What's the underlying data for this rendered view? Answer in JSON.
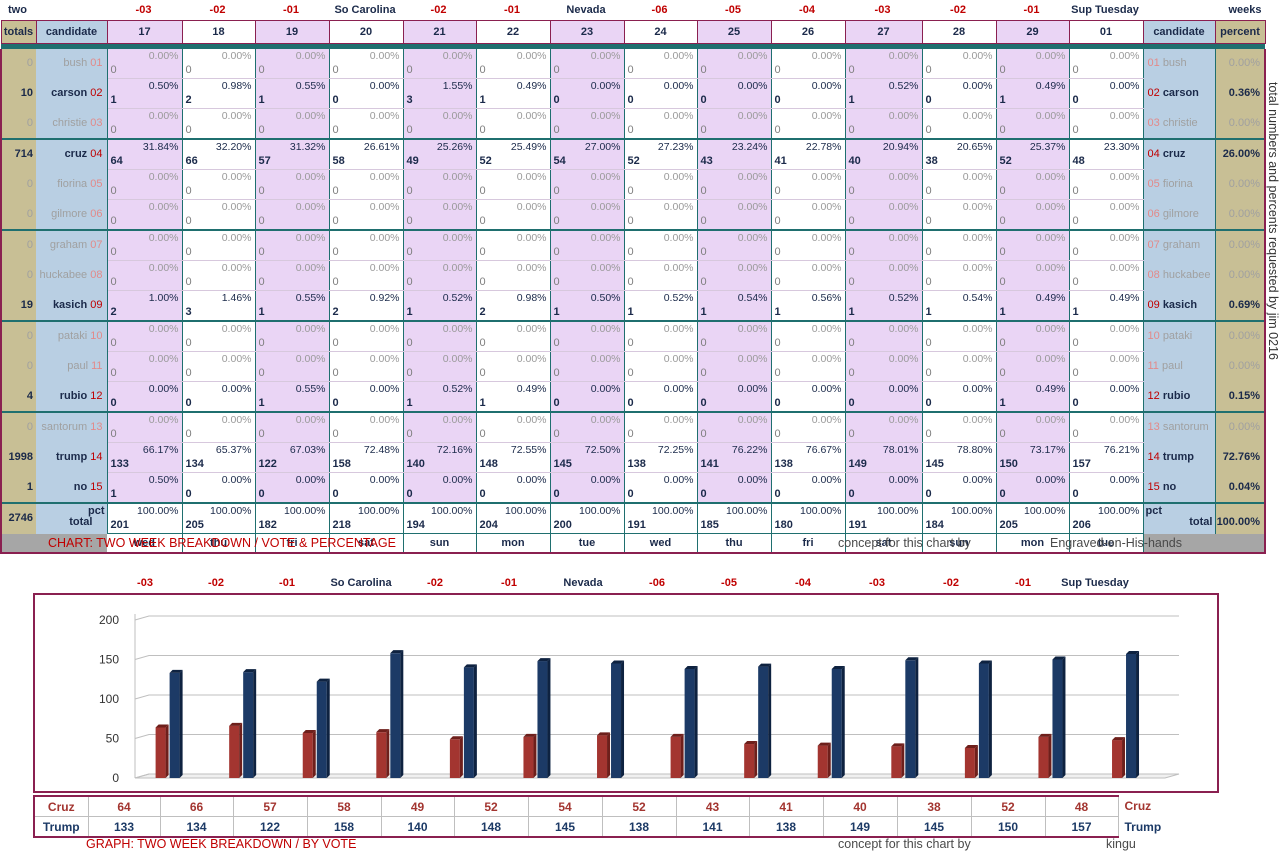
{
  "colors": {
    "red": "#c00000",
    "navy": "#1b2a4a",
    "lavender": "#ead5f5",
    "tan": "#c8bf95",
    "blue": "#b9cfe3",
    "teal": "#1f6f6f",
    "frame": "#8a2050",
    "cruz_bar": "#a33530",
    "trump_bar": "#1c3a66"
  },
  "top_headers": {
    "two": "two",
    "weeks": "weeks",
    "labels": [
      "-03",
      "-02",
      "-01",
      "So Carolina",
      "-02",
      "-01",
      "Nevada",
      "-06",
      "-05",
      "-04",
      "-03",
      "-02",
      "-01",
      "Sup Tuesday"
    ]
  },
  "columns": {
    "totals": "totals",
    "candidate": "candidate",
    "candidate_right": "candidate",
    "percent": "percent",
    "days": [
      "17",
      "18",
      "19",
      "20",
      "21",
      "22",
      "23",
      "24",
      "25",
      "26",
      "27",
      "28",
      "29",
      "01"
    ],
    "weekdays": [
      "wed",
      "thu",
      "fri",
      "sat",
      "sun",
      "mon",
      "tue",
      "wed",
      "thu",
      "fri",
      "sat",
      "sun",
      "mon",
      "tue"
    ]
  },
  "rows": [
    {
      "name": "bush",
      "num": "01",
      "total": "0",
      "pct": "0.00%",
      "active": false,
      "votes": [
        "0",
        "0",
        "0",
        "0",
        "0",
        "0",
        "0",
        "0",
        "0",
        "0",
        "0",
        "0",
        "0",
        "0"
      ],
      "pcts": [
        "0.00%",
        "0.00%",
        "0.00%",
        "0.00%",
        "0.00%",
        "0.00%",
        "0.00%",
        "0.00%",
        "0.00%",
        "0.00%",
        "0.00%",
        "0.00%",
        "0.00%",
        "0.00%"
      ]
    },
    {
      "name": "carson",
      "num": "02",
      "total": "10",
      "pct": "0.36%",
      "active": true,
      "votes": [
        "1",
        "2",
        "1",
        "0",
        "3",
        "1",
        "0",
        "0",
        "0",
        "0",
        "1",
        "0",
        "1",
        "0"
      ],
      "pcts": [
        "0.50%",
        "0.98%",
        "0.55%",
        "0.00%",
        "1.55%",
        "0.49%",
        "0.00%",
        "0.00%",
        "0.00%",
        "0.00%",
        "0.52%",
        "0.00%",
        "0.49%",
        "0.00%"
      ]
    },
    {
      "name": "christie",
      "num": "03",
      "total": "0",
      "pct": "0.00%",
      "active": false,
      "votes": [
        "0",
        "0",
        "0",
        "0",
        "0",
        "0",
        "0",
        "0",
        "0",
        "0",
        "0",
        "0",
        "0",
        "0"
      ],
      "pcts": [
        "0.00%",
        "0.00%",
        "0.00%",
        "0.00%",
        "0.00%",
        "0.00%",
        "0.00%",
        "0.00%",
        "0.00%",
        "0.00%",
        "0.00%",
        "0.00%",
        "0.00%",
        "0.00%"
      ]
    },
    {
      "name": "cruz",
      "num": "04",
      "total": "714",
      "pct": "26.00%",
      "active": true,
      "votes": [
        "64",
        "66",
        "57",
        "58",
        "49",
        "52",
        "54",
        "52",
        "43",
        "41",
        "40",
        "38",
        "52",
        "48"
      ],
      "pcts": [
        "31.84%",
        "32.20%",
        "31.32%",
        "26.61%",
        "25.26%",
        "25.49%",
        "27.00%",
        "27.23%",
        "23.24%",
        "22.78%",
        "20.94%",
        "20.65%",
        "25.37%",
        "23.30%"
      ]
    },
    {
      "name": "fiorina",
      "num": "05",
      "total": "0",
      "pct": "0.00%",
      "active": false,
      "votes": [
        "0",
        "0",
        "0",
        "0",
        "0",
        "0",
        "0",
        "0",
        "0",
        "0",
        "0",
        "0",
        "0",
        "0"
      ],
      "pcts": [
        "0.00%",
        "0.00%",
        "0.00%",
        "0.00%",
        "0.00%",
        "0.00%",
        "0.00%",
        "0.00%",
        "0.00%",
        "0.00%",
        "0.00%",
        "0.00%",
        "0.00%",
        "0.00%"
      ]
    },
    {
      "name": "gilmore",
      "num": "06",
      "total": "0",
      "pct": "0.00%",
      "active": false,
      "votes": [
        "0",
        "0",
        "0",
        "0",
        "0",
        "0",
        "0",
        "0",
        "0",
        "0",
        "0",
        "0",
        "0",
        "0"
      ],
      "pcts": [
        "0.00%",
        "0.00%",
        "0.00%",
        "0.00%",
        "0.00%",
        "0.00%",
        "0.00%",
        "0.00%",
        "0.00%",
        "0.00%",
        "0.00%",
        "0.00%",
        "0.00%",
        "0.00%"
      ]
    },
    {
      "name": "graham",
      "num": "07",
      "total": "0",
      "pct": "0.00%",
      "active": false,
      "votes": [
        "0",
        "0",
        "0",
        "0",
        "0",
        "0",
        "0",
        "0",
        "0",
        "0",
        "0",
        "0",
        "0",
        "0"
      ],
      "pcts": [
        "0.00%",
        "0.00%",
        "0.00%",
        "0.00%",
        "0.00%",
        "0.00%",
        "0.00%",
        "0.00%",
        "0.00%",
        "0.00%",
        "0.00%",
        "0.00%",
        "0.00%",
        "0.00%"
      ]
    },
    {
      "name": "huckabee",
      "num": "08",
      "total": "0",
      "pct": "0.00%",
      "active": false,
      "votes": [
        "0",
        "0",
        "0",
        "0",
        "0",
        "0",
        "0",
        "0",
        "0",
        "0",
        "0",
        "0",
        "0",
        "0"
      ],
      "pcts": [
        "0.00%",
        "0.00%",
        "0.00%",
        "0.00%",
        "0.00%",
        "0.00%",
        "0.00%",
        "0.00%",
        "0.00%",
        "0.00%",
        "0.00%",
        "0.00%",
        "0.00%",
        "0.00%"
      ]
    },
    {
      "name": "kasich",
      "num": "09",
      "total": "19",
      "pct": "0.69%",
      "active": true,
      "votes": [
        "2",
        "3",
        "1",
        "2",
        "1",
        "2",
        "1",
        "1",
        "1",
        "1",
        "1",
        "1",
        "1",
        "1"
      ],
      "pcts": [
        "1.00%",
        "1.46%",
        "0.55%",
        "0.92%",
        "0.52%",
        "0.98%",
        "0.50%",
        "0.52%",
        "0.54%",
        "0.56%",
        "0.52%",
        "0.54%",
        "0.49%",
        "0.49%"
      ]
    },
    {
      "name": "pataki",
      "num": "10",
      "total": "0",
      "pct": "0.00%",
      "active": false,
      "votes": [
        "0",
        "0",
        "0",
        "0",
        "0",
        "0",
        "0",
        "0",
        "0",
        "0",
        "0",
        "0",
        "0",
        "0"
      ],
      "pcts": [
        "0.00%",
        "0.00%",
        "0.00%",
        "0.00%",
        "0.00%",
        "0.00%",
        "0.00%",
        "0.00%",
        "0.00%",
        "0.00%",
        "0.00%",
        "0.00%",
        "0.00%",
        "0.00%"
      ]
    },
    {
      "name": "paul",
      "num": "11",
      "total": "0",
      "pct": "0.00%",
      "active": false,
      "votes": [
        "0",
        "0",
        "0",
        "0",
        "0",
        "0",
        "0",
        "0",
        "0",
        "0",
        "0",
        "0",
        "0",
        "0"
      ],
      "pcts": [
        "0.00%",
        "0.00%",
        "0.00%",
        "0.00%",
        "0.00%",
        "0.00%",
        "0.00%",
        "0.00%",
        "0.00%",
        "0.00%",
        "0.00%",
        "0.00%",
        "0.00%",
        "0.00%"
      ]
    },
    {
      "name": "rubio",
      "num": "12",
      "total": "4",
      "pct": "0.15%",
      "active": true,
      "votes": [
        "0",
        "0",
        "1",
        "0",
        "1",
        "1",
        "0",
        "0",
        "0",
        "0",
        "0",
        "0",
        "1",
        "0"
      ],
      "pcts": [
        "0.00%",
        "0.00%",
        "0.55%",
        "0.00%",
        "0.52%",
        "0.49%",
        "0.00%",
        "0.00%",
        "0.00%",
        "0.00%",
        "0.00%",
        "0.00%",
        "0.49%",
        "0.00%"
      ]
    },
    {
      "name": "santorum",
      "num": "13",
      "total": "0",
      "pct": "0.00%",
      "active": false,
      "votes": [
        "0",
        "0",
        "0",
        "0",
        "0",
        "0",
        "0",
        "0",
        "0",
        "0",
        "0",
        "0",
        "0",
        "0"
      ],
      "pcts": [
        "0.00%",
        "0.00%",
        "0.00%",
        "0.00%",
        "0.00%",
        "0.00%",
        "0.00%",
        "0.00%",
        "0.00%",
        "0.00%",
        "0.00%",
        "0.00%",
        "0.00%",
        "0.00%"
      ]
    },
    {
      "name": "trump",
      "num": "14",
      "total": "1998",
      "pct": "72.76%",
      "active": true,
      "votes": [
        "133",
        "134",
        "122",
        "158",
        "140",
        "148",
        "145",
        "138",
        "141",
        "138",
        "149",
        "145",
        "150",
        "157"
      ],
      "pcts": [
        "66.17%",
        "65.37%",
        "67.03%",
        "72.48%",
        "72.16%",
        "72.55%",
        "72.50%",
        "72.25%",
        "76.22%",
        "76.67%",
        "78.01%",
        "78.80%",
        "73.17%",
        "76.21%"
      ]
    },
    {
      "name": "no",
      "num": "15",
      "total": "1",
      "pct": "0.04%",
      "active": true,
      "votes": [
        "1",
        "0",
        "0",
        "0",
        "0",
        "0",
        "0",
        "0",
        "0",
        "0",
        "0",
        "0",
        "0",
        "0"
      ],
      "pcts": [
        "0.50%",
        "0.00%",
        "0.00%",
        "0.00%",
        "0.00%",
        "0.00%",
        "0.00%",
        "0.00%",
        "0.00%",
        "0.00%",
        "0.00%",
        "0.00%",
        "0.00%",
        "0.00%"
      ]
    }
  ],
  "total_row": {
    "total": "2746",
    "label": "total",
    "pct_label": "pct",
    "pct": "100.00%",
    "votes": [
      "201",
      "205",
      "182",
      "218",
      "194",
      "204",
      "200",
      "191",
      "185",
      "180",
      "191",
      "184",
      "205",
      "206"
    ],
    "pcts": [
      "100.00%",
      "100.00%",
      "100.00%",
      "100.00%",
      "100.00%",
      "100.00%",
      "100.00%",
      "100.00%",
      "100.00%",
      "100.00%",
      "100.00%",
      "100.00%",
      "100.00%",
      "100.00%"
    ]
  },
  "vertical_note": "total numbers and percents requested by          jim 0216",
  "captions": {
    "table_title": "CHART: TWO WEEK BREAKDOWN / VOTE & PERCENTAGE",
    "concept": "concept for this chart by",
    "table_author": "Engraved-on-His-hands",
    "graph_title": "GRAPH: TWO WEEK BREAKDOWN / BY VOTE",
    "graph_author": "kingu"
  },
  "chart_data": {
    "type": "bar",
    "categories": [
      "-03",
      "-02",
      "-01",
      "So Carolina",
      "-02",
      "-01",
      "Nevada",
      "-06",
      "-05",
      "-04",
      "-03",
      "-02",
      "-01",
      "Sup Tuesday"
    ],
    "series": [
      {
        "name": "Cruz",
        "values": [
          64,
          66,
          57,
          58,
          49,
          52,
          54,
          52,
          43,
          41,
          40,
          38,
          52,
          48
        ]
      },
      {
        "name": "Trump",
        "values": [
          133,
          134,
          122,
          158,
          140,
          148,
          145,
          138,
          141,
          138,
          149,
          145,
          150,
          157
        ]
      }
    ],
    "yticks": [
      "0",
      "50",
      "100",
      "150",
      "200"
    ],
    "ylim": [
      0,
      200
    ],
    "grid": true
  }
}
